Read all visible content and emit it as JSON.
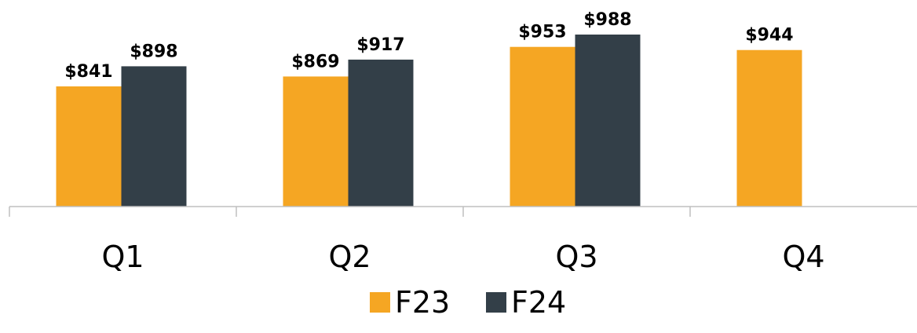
{
  "chart_data": {
    "type": "bar",
    "categories": [
      "Q1",
      "Q2",
      "Q3",
      "Q4"
    ],
    "series": [
      {
        "name": "F23",
        "values": [
          841,
          869,
          953,
          944
        ],
        "labels": [
          "$841",
          "$869",
          "$953",
          "$944"
        ],
        "color": "#F5A623"
      },
      {
        "name": "F24",
        "values": [
          898,
          917,
          988,
          null
        ],
        "labels": [
          "$898",
          "$917",
          "$988",
          ""
        ],
        "color": "#333F48"
      }
    ],
    "ylim": [
      0,
      1000
    ],
    "grid": false,
    "legend_position": "bottom"
  }
}
